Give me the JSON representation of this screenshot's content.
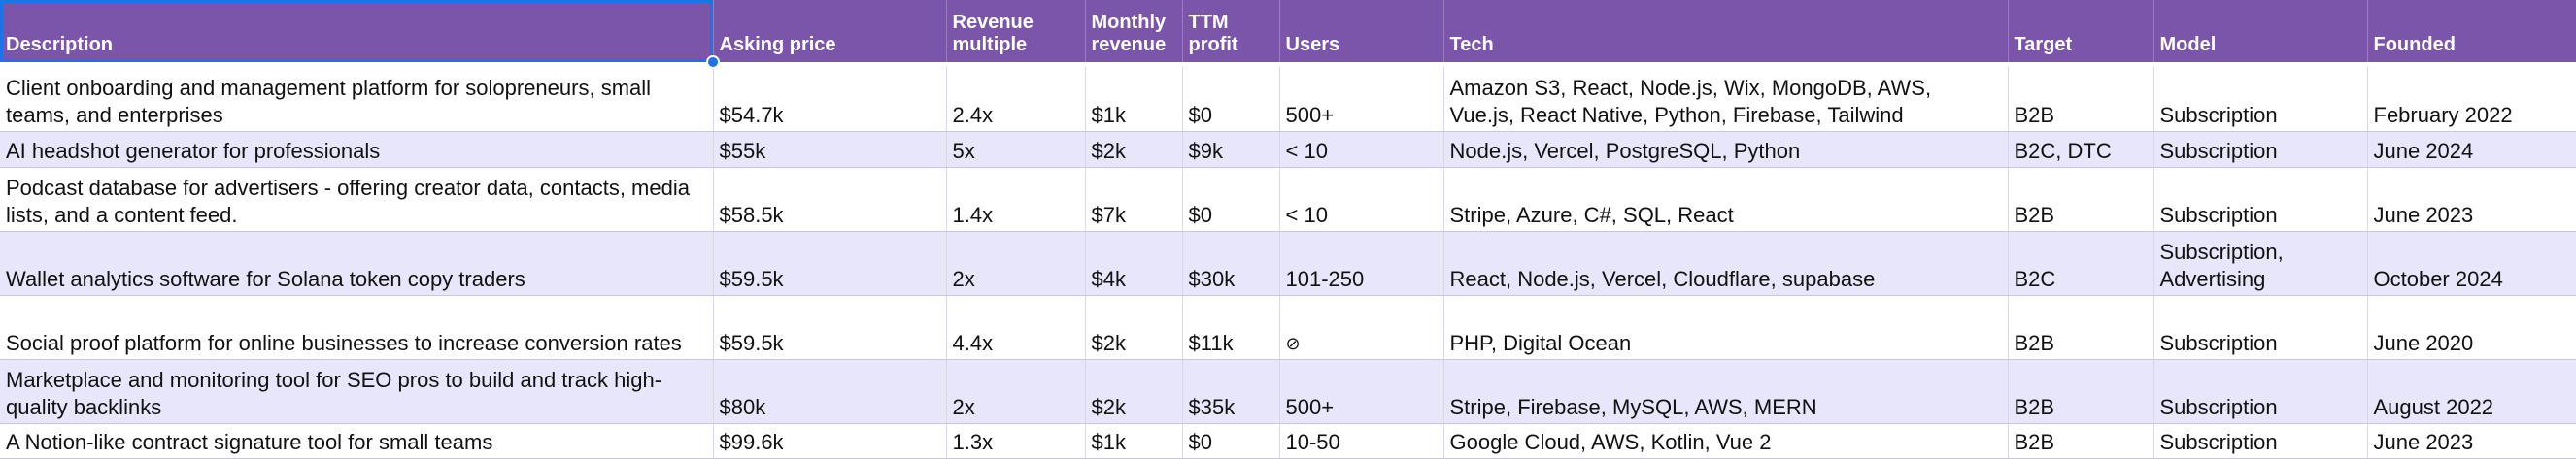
{
  "headers": [
    "Description",
    "Asking price",
    "Revenue multiple",
    "Monthly revenue",
    "TTM profit",
    "Users",
    "Tech",
    "Target",
    "Model",
    "Founded"
  ],
  "rows": [
    [
      "Client onboarding and management platform for solopreneurs, small teams, and enterprises",
      "$54.7k",
      "2.4x",
      "$1k",
      "$0",
      "500+",
      "Amazon S3, React, Node.js, Wix, MongoDB, AWS, Vue.js, React Native, Python, Firebase, Tailwind",
      "B2B",
      "Subscription",
      "February 2022"
    ],
    [
      "AI headshot generator for professionals",
      "$55k",
      "5x",
      "$2k",
      "$9k",
      "< 10",
      "Node.js, Vercel, PostgreSQL, Python",
      "B2C, DTC",
      "Subscription",
      "June 2024"
    ],
    [
      "Podcast database for advertisers - offering creator data, contacts, media lists, and a content feed.",
      "$58.5k",
      "1.4x",
      "$7k",
      "$0",
      "< 10",
      "Stripe, Azure, C#, SQL, React",
      "B2B",
      "Subscription",
      "June 2023"
    ],
    [
      "Wallet analytics software for Solana token copy traders",
      "$59.5k",
      "2x",
      "$4k",
      "$30k",
      "101-250",
      "React, Node.js, Vercel, Cloudflare, supabase",
      "B2C",
      "Subscription, Advertising",
      "October 2024"
    ],
    [
      "Social proof platform for online businesses to increase conversion rates",
      "$59.5k",
      "4.4x",
      "$2k",
      "$11k",
      "⊘",
      "PHP, Digital Ocean",
      "B2B",
      "Subscription",
      "June 2020"
    ],
    [
      "Marketplace and monitoring tool for SEO pros to build and track high-quality backlinks",
      "$80k",
      "2x",
      "$2k",
      "$35k",
      "500+",
      "Stripe, Firebase, MySQL, AWS, MERN",
      "B2B",
      "Subscription",
      "August 2022"
    ],
    [
      "A Notion-like contract signature tool for small teams",
      "$99.6k",
      "1.3x",
      "$1k",
      "$0",
      "10-50",
      "Google Cloud, AWS, Kotlin, Vue 2",
      "B2B",
      "Subscription",
      "June 2023"
    ]
  ],
  "colors": {
    "header_bg": "#7b55a9",
    "header_text": "#ffffff",
    "band_row": "#e8e6fa",
    "selection": "#1a73e8"
  }
}
